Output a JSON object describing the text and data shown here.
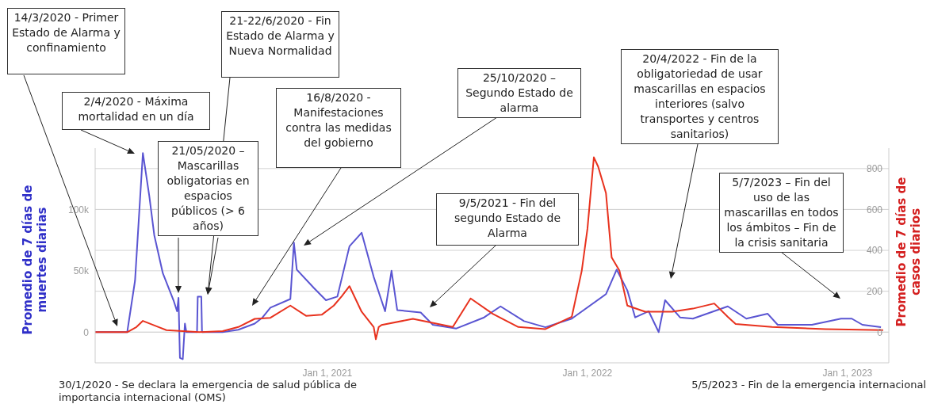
{
  "chart_data": {
    "type": "line",
    "ylabel": "Promedio de 7 días de muertes diarias",
    "y2label": "Promedio de 7 días de casos diarios",
    "annotations": [
      "14/3/2020 - Primer Estado de Alarma y confinamiento",
      "2/4/2020 - Máxima mortalidad en un día",
      "21-22/6/2020 - Fin Estado de Alarma y Nueva Normalidad",
      "21/05/2020 – Mascarillas obligatorias en espacios públicos (> 6 años)",
      "16/8/2020 - Manifestaciones contra las medidas del gobierno",
      "25/10/2020 – Segundo Estado de alarma",
      "9/5/2021 - Fin del segundo Estado de Alarma",
      "20/4/2022 - Fin de la obligatoriedad de usar mascarillas en espacios interiores (salvo transportes y centros sanitarios)",
      "5/7/2023 – Fin del uso de las mascarillas en todos los ámbitos – Fin de la crisis sanitaria",
      "30/1/2020 - Se declara la emergencia de salud pública de importancia internacional (OMS)",
      "5/5/2023 - Fin de la emergencia internacional"
    ],
    "xlim": [
      "2020-02-10",
      "2023-02-28"
    ],
    "xticks": [
      {
        "value": "2021-01-01",
        "label": "Jan 1, 2021"
      },
      {
        "value": "2022-01-01",
        "label": "Jan 1, 2022"
      },
      {
        "value": "2023-01-01",
        "label": "Jan 1, 2023"
      }
    ],
    "ylim": [
      -25000,
      150000
    ],
    "yticks": [
      0,
      {
        "value": 50000,
        "label": "50k"
      },
      {
        "value": 100000,
        "label": "100k"
      }
    ],
    "y2lim": [
      -150,
      900
    ],
    "y2ticks": [
      0,
      200,
      400,
      600,
      800
    ],
    "grid": "y",
    "series": [
      {
        "color": "#5a55d2",
        "x": [
          "2020-02-10",
          "2020-03-26",
          "2020-04-06",
          "2020-04-17",
          "2020-04-26",
          "2020-05-03",
          "2020-05-15",
          "2020-05-30",
          "2020-06-04",
          "2020-06-06",
          "2020-06-08",
          "2020-06-12",
          "2020-06-15",
          "2020-06-17",
          "2020-07-02",
          "2020-07-03",
          "2020-07-08",
          "2020-07-09",
          "2020-08-07",
          "2020-08-29",
          "2020-09-21",
          "2020-10-02",
          "2020-10-13",
          "2020-11-10",
          "2020-11-15",
          "2020-11-19",
          "2020-12-13",
          "2020-12-30",
          "2021-01-15",
          "2021-02-01",
          "2021-02-18",
          "2021-03-07",
          "2021-03-23",
          "2021-04-01",
          "2021-04-09",
          "2021-05-12",
          "2021-05-29",
          "2021-07-01",
          "2021-08-09",
          "2021-09-01",
          "2021-10-04",
          "2021-11-03",
          "2021-12-10",
          "2022-01-27",
          "2022-02-11",
          "2022-02-26",
          "2022-03-09",
          "2022-03-28",
          "2022-04-11",
          "2022-04-20",
          "2022-05-11",
          "2022-05-29",
          "2022-07-17",
          "2022-08-12",
          "2022-09-11",
          "2022-09-25",
          "2022-11-12",
          "2022-12-23",
          "2023-01-07",
          "2023-01-22",
          "2023-02-17"
        ],
        "values": [
          0,
          0,
          42000,
          146000,
          111000,
          79000,
          48000,
          26000,
          17000,
          28000,
          -21000,
          -22000,
          7000,
          0,
          0,
          29000,
          29000,
          0,
          0,
          2000,
          7000,
          12000,
          20000,
          27000,
          73000,
          51000,
          36000,
          26000,
          29000,
          70000,
          81000,
          45000,
          17000,
          50000,
          18000,
          16000,
          6000,
          3000,
          12000,
          21000,
          9000,
          4000,
          11000,
          31000,
          51000,
          34000,
          12000,
          17000,
          0,
          26000,
          12000,
          11000,
          21000,
          11000,
          15000,
          6000,
          6000,
          11000,
          11000,
          6000,
          4000
        ]
      },
      {
        "color": "#e8321e",
        "axis": "y2",
        "x": [
          "2020-02-10",
          "2020-03-26",
          "2020-04-08",
          "2020-04-17",
          "2020-05-09",
          "2020-05-20",
          "2020-07-05",
          "2020-08-07",
          "2020-08-29",
          "2020-09-21",
          "2020-10-13",
          "2020-11-10",
          "2020-12-02",
          "2020-12-24",
          "2021-01-10",
          "2021-01-21",
          "2021-02-01",
          "2021-02-18",
          "2021-03-07",
          "2021-03-10",
          "2021-03-14",
          "2021-03-18",
          "2021-05-01",
          "2021-06-26",
          "2021-07-21",
          "2021-08-21",
          "2021-09-26",
          "2021-11-03",
          "2021-12-10",
          "2021-12-24",
          "2022-01-01",
          "2022-01-10",
          "2022-01-16",
          "2022-01-27",
          "2022-02-04",
          "2022-02-15",
          "2022-02-26",
          "2022-03-23",
          "2022-04-30",
          "2022-05-29",
          "2022-06-28",
          "2022-07-17",
          "2022-07-28",
          "2022-09-17",
          "2022-12-01",
          "2023-02-20"
        ],
        "values": [
          0,
          0,
          25,
          55,
          25,
          10,
          0,
          5,
          25,
          65,
          70,
          130,
          80,
          85,
          130,
          175,
          225,
          100,
          25,
          -35,
          25,
          35,
          65,
          25,
          165,
          90,
          25,
          15,
          75,
          300,
          505,
          855,
          810,
          680,
          365,
          300,
          130,
          100,
          100,
          115,
          140,
          75,
          40,
          25,
          15,
          10
        ]
      }
    ]
  }
}
